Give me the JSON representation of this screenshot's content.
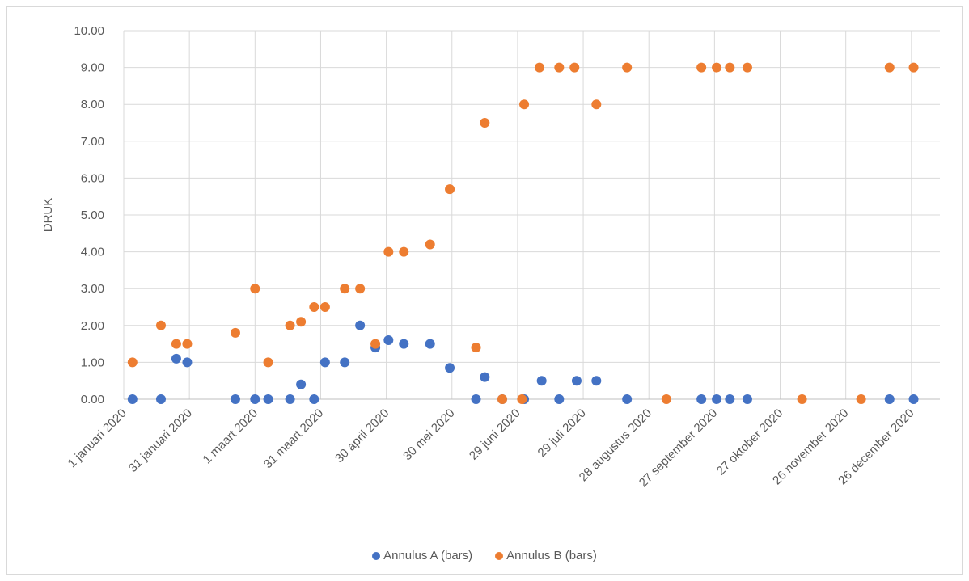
{
  "chart_data": {
    "type": "scatter",
    "title": "",
    "xlabel": "",
    "ylabel": "DRUK",
    "ylim": [
      0,
      10
    ],
    "yticks": [
      "0.00",
      "1.00",
      "2.00",
      "3.00",
      "4.00",
      "5.00",
      "6.00",
      "7.00",
      "8.00",
      "9.00",
      "10.00"
    ],
    "xlim": [
      "2020-01-01",
      "2021-01-08"
    ],
    "xticks": [
      {
        "date": "2020-01-01",
        "label": "1 januari 2020"
      },
      {
        "date": "2020-01-31",
        "label": "31 januari 2020"
      },
      {
        "date": "2020-03-01",
        "label": "1 maart 2020"
      },
      {
        "date": "2020-03-31",
        "label": "31 maart 2020"
      },
      {
        "date": "2020-04-30",
        "label": "30 april 2020"
      },
      {
        "date": "2020-05-30",
        "label": "30 mei 2020"
      },
      {
        "date": "2020-06-29",
        "label": "29 juni 2020"
      },
      {
        "date": "2020-07-29",
        "label": "29 juli 2020"
      },
      {
        "date": "2020-08-28",
        "label": "28 augustus 2020"
      },
      {
        "date": "2020-09-27",
        "label": "27 september 2020"
      },
      {
        "date": "2020-10-27",
        "label": "27 oktober 2020"
      },
      {
        "date": "2020-11-26",
        "label": "26 november 2020"
      },
      {
        "date": "2020-12-26",
        "label": "26 december 2020"
      }
    ],
    "grid": true,
    "legend_position": "bottom",
    "series": [
      {
        "name": "Annulus A (bars)",
        "color": "#4472c4",
        "points": [
          {
            "x": "2020-01-05",
            "y": 0
          },
          {
            "x": "2020-01-18",
            "y": 0
          },
          {
            "x": "2020-01-25",
            "y": 1.1
          },
          {
            "x": "2020-01-30",
            "y": 1.0
          },
          {
            "x": "2020-02-21",
            "y": 0
          },
          {
            "x": "2020-03-01",
            "y": 0
          },
          {
            "x": "2020-03-07",
            "y": 0
          },
          {
            "x": "2020-03-17",
            "y": 0
          },
          {
            "x": "2020-03-22",
            "y": 0.4
          },
          {
            "x": "2020-03-28",
            "y": 0
          },
          {
            "x": "2020-04-02",
            "y": 1.0
          },
          {
            "x": "2020-04-11",
            "y": 1.0
          },
          {
            "x": "2020-04-18",
            "y": 2.0
          },
          {
            "x": "2020-04-25",
            "y": 1.4
          },
          {
            "x": "2020-05-01",
            "y": 1.6
          },
          {
            "x": "2020-05-08",
            "y": 1.5
          },
          {
            "x": "2020-05-20",
            "y": 1.5
          },
          {
            "x": "2020-05-29",
            "y": 0.85
          },
          {
            "x": "2020-06-10",
            "y": 0
          },
          {
            "x": "2020-06-14",
            "y": 0.6
          },
          {
            "x": "2020-06-22",
            "y": 0
          },
          {
            "x": "2020-07-02",
            "y": 0
          },
          {
            "x": "2020-07-10",
            "y": 0.5
          },
          {
            "x": "2020-07-18",
            "y": 0
          },
          {
            "x": "2020-07-26",
            "y": 0.5
          },
          {
            "x": "2020-08-04",
            "y": 0.5
          },
          {
            "x": "2020-08-18",
            "y": 0
          },
          {
            "x": "2020-09-21",
            "y": 0
          },
          {
            "x": "2020-09-28",
            "y": 0
          },
          {
            "x": "2020-10-04",
            "y": 0
          },
          {
            "x": "2020-10-12",
            "y": 0
          },
          {
            "x": "2020-12-16",
            "y": 0
          },
          {
            "x": "2020-12-27",
            "y": 0
          }
        ]
      },
      {
        "name": "Annulus B (bars)",
        "color": "#ed7d31",
        "points": [
          {
            "x": "2020-01-05",
            "y": 1.0
          },
          {
            "x": "2020-01-18",
            "y": 2.0
          },
          {
            "x": "2020-01-25",
            "y": 1.5
          },
          {
            "x": "2020-01-30",
            "y": 1.5
          },
          {
            "x": "2020-02-21",
            "y": 1.8
          },
          {
            "x": "2020-03-01",
            "y": 3.0
          },
          {
            "x": "2020-03-07",
            "y": 1.0
          },
          {
            "x": "2020-03-17",
            "y": 2.0
          },
          {
            "x": "2020-03-22",
            "y": 2.1
          },
          {
            "x": "2020-03-28",
            "y": 2.5
          },
          {
            "x": "2020-04-02",
            "y": 2.5
          },
          {
            "x": "2020-04-11",
            "y": 3.0
          },
          {
            "x": "2020-04-18",
            "y": 3.0
          },
          {
            "x": "2020-04-25",
            "y": 1.5
          },
          {
            "x": "2020-05-01",
            "y": 4.0
          },
          {
            "x": "2020-05-08",
            "y": 4.0
          },
          {
            "x": "2020-05-20",
            "y": 4.2
          },
          {
            "x": "2020-05-29",
            "y": 5.7
          },
          {
            "x": "2020-06-10",
            "y": 1.4
          },
          {
            "x": "2020-06-14",
            "y": 7.5
          },
          {
            "x": "2020-06-22",
            "y": 0
          },
          {
            "x": "2020-07-01",
            "y": 0
          },
          {
            "x": "2020-07-02",
            "y": 8.0
          },
          {
            "x": "2020-07-09",
            "y": 9.0
          },
          {
            "x": "2020-07-18",
            "y": 9.0
          },
          {
            "x": "2020-07-25",
            "y": 9.0
          },
          {
            "x": "2020-08-04",
            "y": 8.0
          },
          {
            "x": "2020-08-18",
            "y": 9.0
          },
          {
            "x": "2020-09-05",
            "y": 0
          },
          {
            "x": "2020-09-21",
            "y": 9.0
          },
          {
            "x": "2020-09-28",
            "y": 9.0
          },
          {
            "x": "2020-10-04",
            "y": 9.0
          },
          {
            "x": "2020-10-12",
            "y": 9.0
          },
          {
            "x": "2020-11-06",
            "y": 0
          },
          {
            "x": "2020-12-03",
            "y": 0
          },
          {
            "x": "2020-12-16",
            "y": 9.0
          },
          {
            "x": "2020-12-27",
            "y": 9.0
          }
        ]
      }
    ]
  }
}
